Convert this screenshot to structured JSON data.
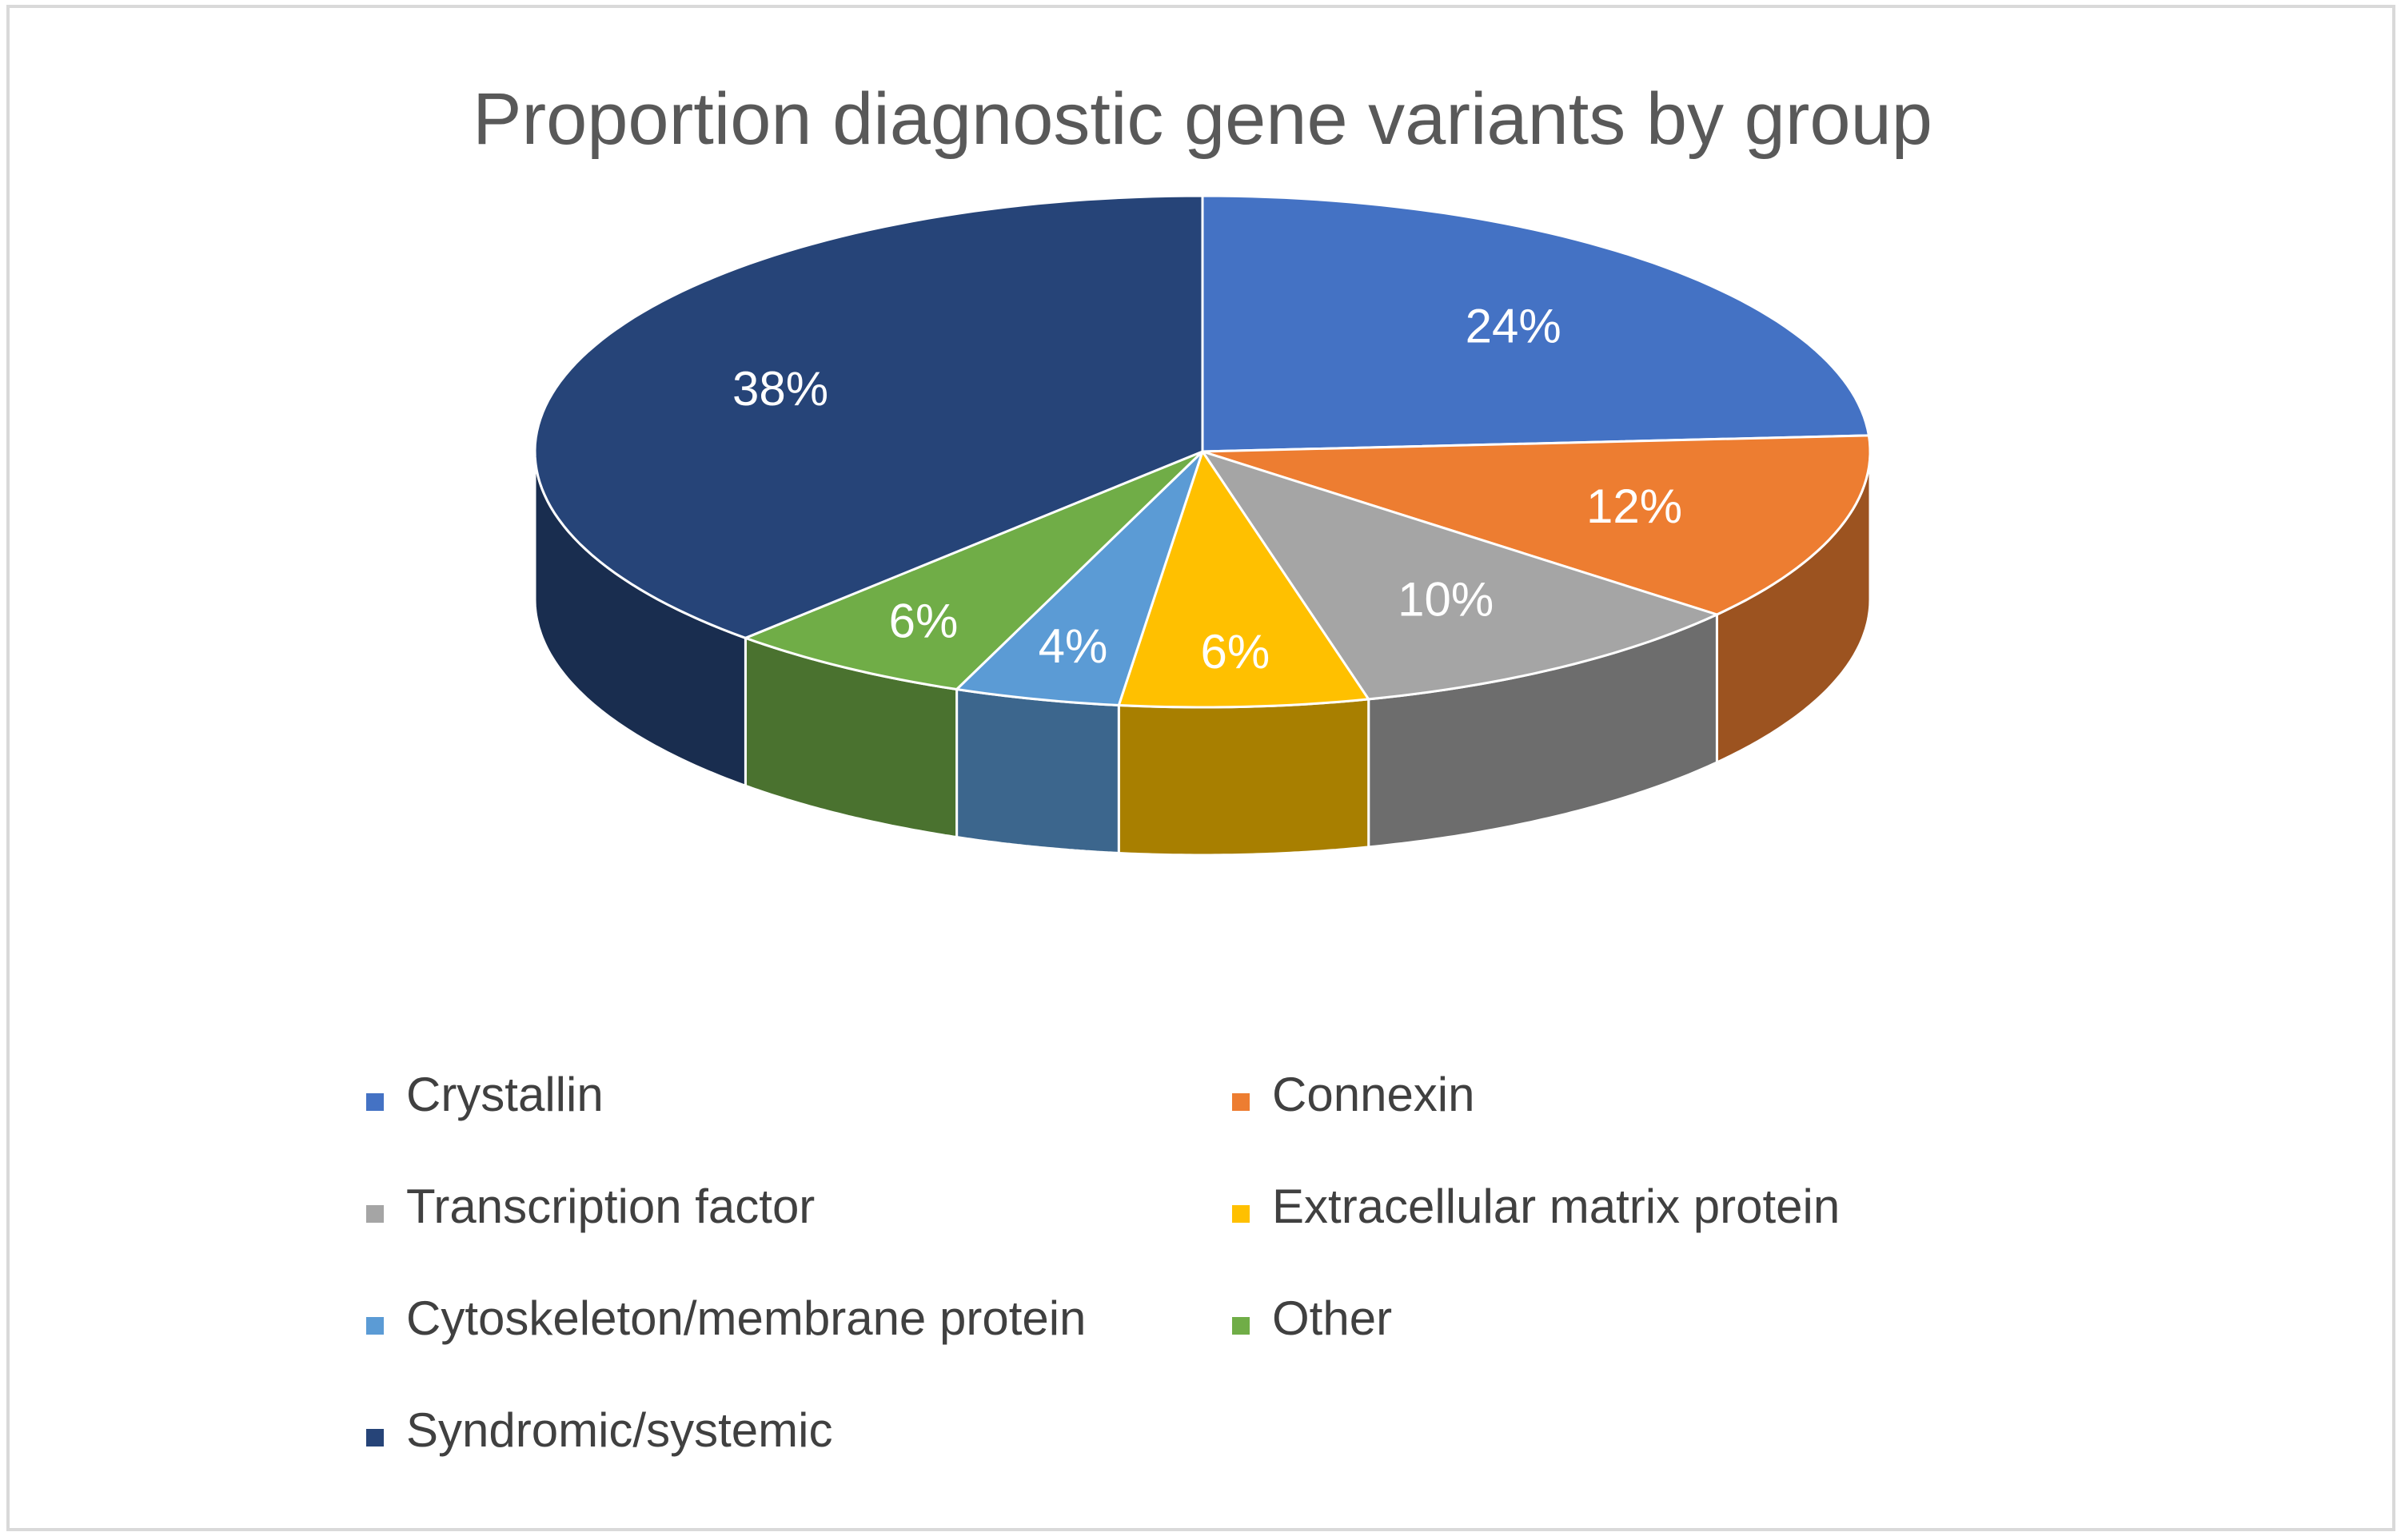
{
  "chart_data": {
    "type": "pie",
    "title": "Proportion diagnostic gene variants by group",
    "categories": [
      "Crystallin",
      "Connexin",
      "Transcription factor",
      "Extracellular matrix protein",
      "Cytoskeleton/membrane protein",
      "Other",
      "Syndromic/systemic"
    ],
    "values": [
      24,
      12,
      10,
      6,
      4,
      6,
      38
    ],
    "labels": [
      "24%",
      "12%",
      "10%",
      "6%",
      "4%",
      "6%",
      "38%"
    ],
    "colors": [
      "#4472C4",
      "#ED7D31",
      "#A5A5A5",
      "#FFC000",
      "#5B9BD5",
      "#70AD47",
      "#264478"
    ],
    "style": "3d",
    "legend_position": "bottom",
    "data_labels": "inside"
  }
}
